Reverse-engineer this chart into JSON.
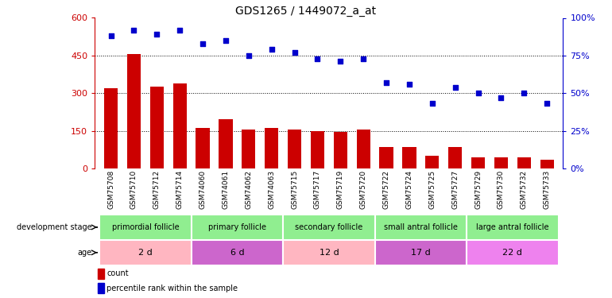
{
  "title": "GDS1265 / 1449072_a_at",
  "samples": [
    "GSM75708",
    "GSM75710",
    "GSM75712",
    "GSM75714",
    "GSM74060",
    "GSM74061",
    "GSM74062",
    "GSM74063",
    "GSM75715",
    "GSM75717",
    "GSM75719",
    "GSM75720",
    "GSM75722",
    "GSM75724",
    "GSM75725",
    "GSM75727",
    "GSM75729",
    "GSM75730",
    "GSM75732",
    "GSM75733"
  ],
  "counts": [
    320,
    455,
    325,
    340,
    160,
    195,
    155,
    160,
    155,
    150,
    145,
    155,
    85,
    85,
    50,
    85,
    45,
    45,
    45,
    35
  ],
  "percentiles": [
    88,
    92,
    89,
    92,
    83,
    85,
    75,
    79,
    77,
    73,
    71,
    73,
    57,
    56,
    43,
    54,
    50,
    47,
    50,
    43
  ],
  "ylim_left": [
    0,
    600
  ],
  "ylim_right": [
    0,
    100
  ],
  "yticks_left": [
    0,
    150,
    300,
    450,
    600
  ],
  "yticks_right": [
    0,
    25,
    50,
    75,
    100
  ],
  "bar_color": "#cc0000",
  "dot_color": "#0000cc",
  "stage_defs": [
    [
      0,
      4,
      "#90ee90",
      "primordial follicle"
    ],
    [
      4,
      8,
      "#90ee90",
      "primary follicle"
    ],
    [
      8,
      12,
      "#90ee90",
      "secondary follicle"
    ],
    [
      12,
      16,
      "#90ee90",
      "small antral follicle"
    ],
    [
      16,
      20,
      "#90ee90",
      "large antral follicle"
    ]
  ],
  "age_defs": [
    [
      0,
      4,
      "#ffb6c1",
      "2 d"
    ],
    [
      4,
      8,
      "#cc66cc",
      "6 d"
    ],
    [
      8,
      12,
      "#ffb6c1",
      "12 d"
    ],
    [
      12,
      16,
      "#cc66cc",
      "17 d"
    ],
    [
      16,
      20,
      "#ee82ee",
      "22 d"
    ]
  ],
  "dev_stage_label": "development stage",
  "age_label": "age"
}
